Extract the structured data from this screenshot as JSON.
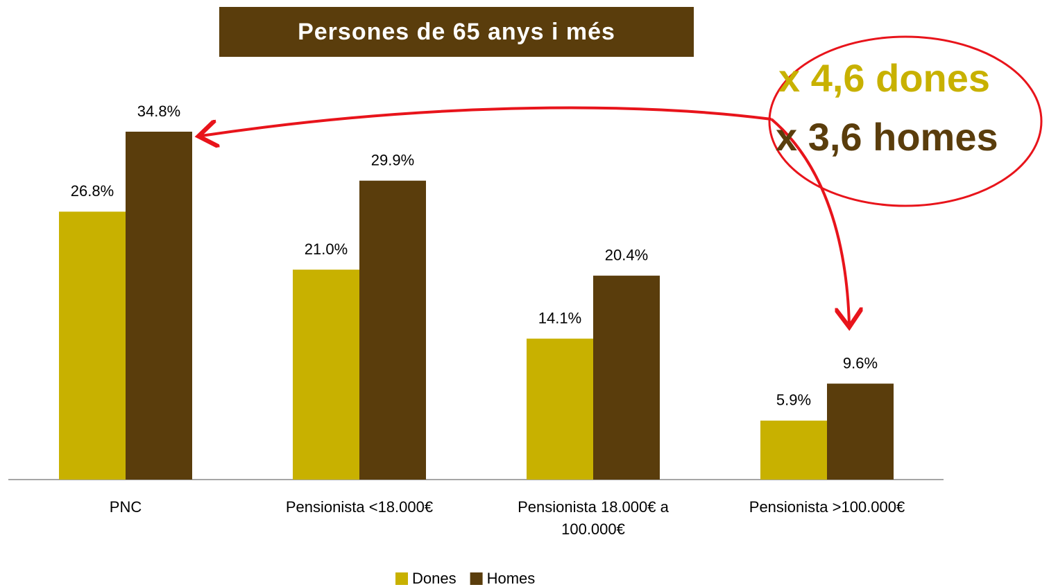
{
  "chart_data": {
    "type": "bar",
    "title": "Persones de 65 anys i més",
    "annotations": [
      "x 4,6 dones",
      "x 3,6 homes"
    ],
    "categories": [
      "PNC",
      "Pensionista <18.000€",
      "Pensionista 18.000€ a 100.000€",
      "Pensionista >100.000€"
    ],
    "series": [
      {
        "name": "Dones",
        "color": "#c8b100",
        "values": [
          26.8,
          21.0,
          14.1,
          5.9
        ],
        "value_labels": [
          "26.8%",
          "21.0%",
          "14.1%",
          "5.9%"
        ]
      },
      {
        "name": "Homes",
        "color": "#5a3d0c",
        "values": [
          34.8,
          29.9,
          20.4,
          9.6
        ],
        "value_labels": [
          "34.8%",
          "29.9%",
          "20.4%",
          "9.6%"
        ]
      }
    ],
    "legend": "bottom"
  }
}
